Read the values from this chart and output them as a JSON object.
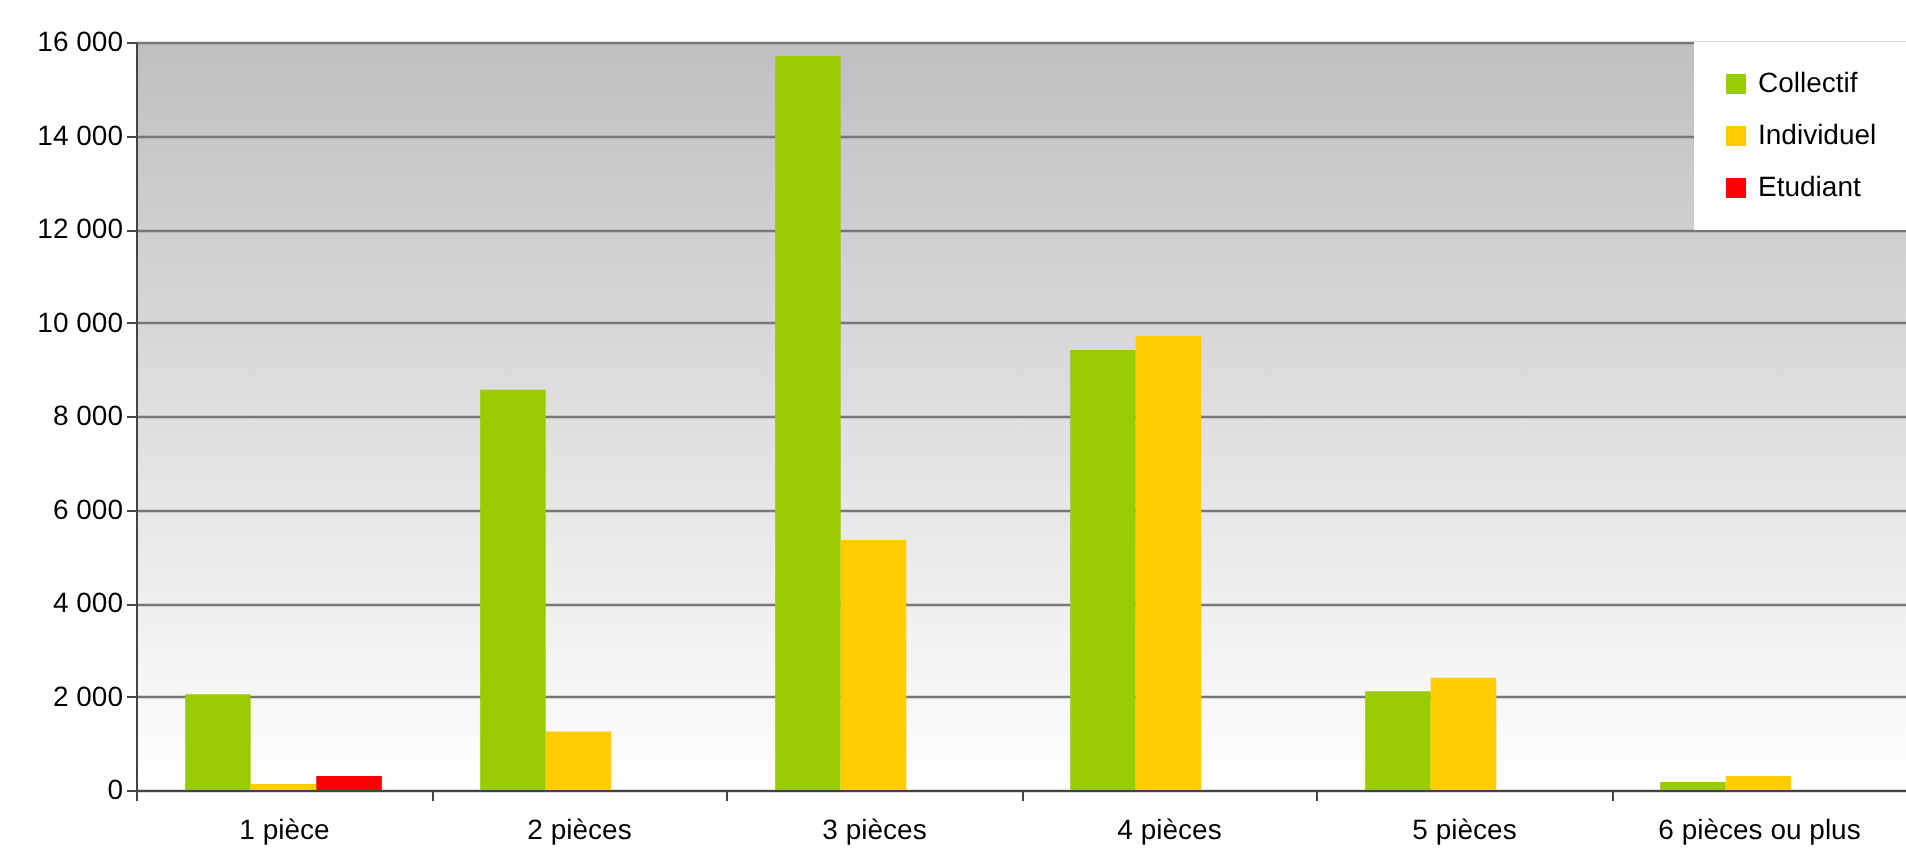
{
  "chart_data": {
    "type": "bar",
    "categories": [
      "1 pièce",
      "2 pièces",
      "3 pièces",
      "4 pièces",
      "5 pièces",
      "6 pièces ou plus"
    ],
    "series": [
      {
        "name": "Collectif",
        "color": "#99cc00",
        "values": [
          2050,
          8560,
          15700,
          9410,
          2110,
          170
        ]
      },
      {
        "name": "Individuel",
        "color": "#ffcc00",
        "values": [
          130,
          1250,
          5350,
          9710,
          2400,
          300
        ]
      },
      {
        "name": "Etudiant",
        "color": "#ff0000",
        "values": [
          300,
          null,
          null,
          null,
          null,
          null
        ]
      }
    ],
    "ylim": [
      0,
      16000
    ],
    "yticks": [
      {
        "value": 0,
        "label": "0"
      },
      {
        "value": 2000,
        "label": "2 000"
      },
      {
        "value": 4000,
        "label": "4 000"
      },
      {
        "value": 6000,
        "label": "6 000"
      },
      {
        "value": 8000,
        "label": "8 000"
      },
      {
        "value": 10000,
        "label": "10 000"
      },
      {
        "value": 12000,
        "label": "12 000"
      },
      {
        "value": 14000,
        "label": "14 000"
      },
      {
        "value": 16000,
        "label": "16 000"
      }
    ],
    "grid": "y",
    "legend": "top right"
  }
}
